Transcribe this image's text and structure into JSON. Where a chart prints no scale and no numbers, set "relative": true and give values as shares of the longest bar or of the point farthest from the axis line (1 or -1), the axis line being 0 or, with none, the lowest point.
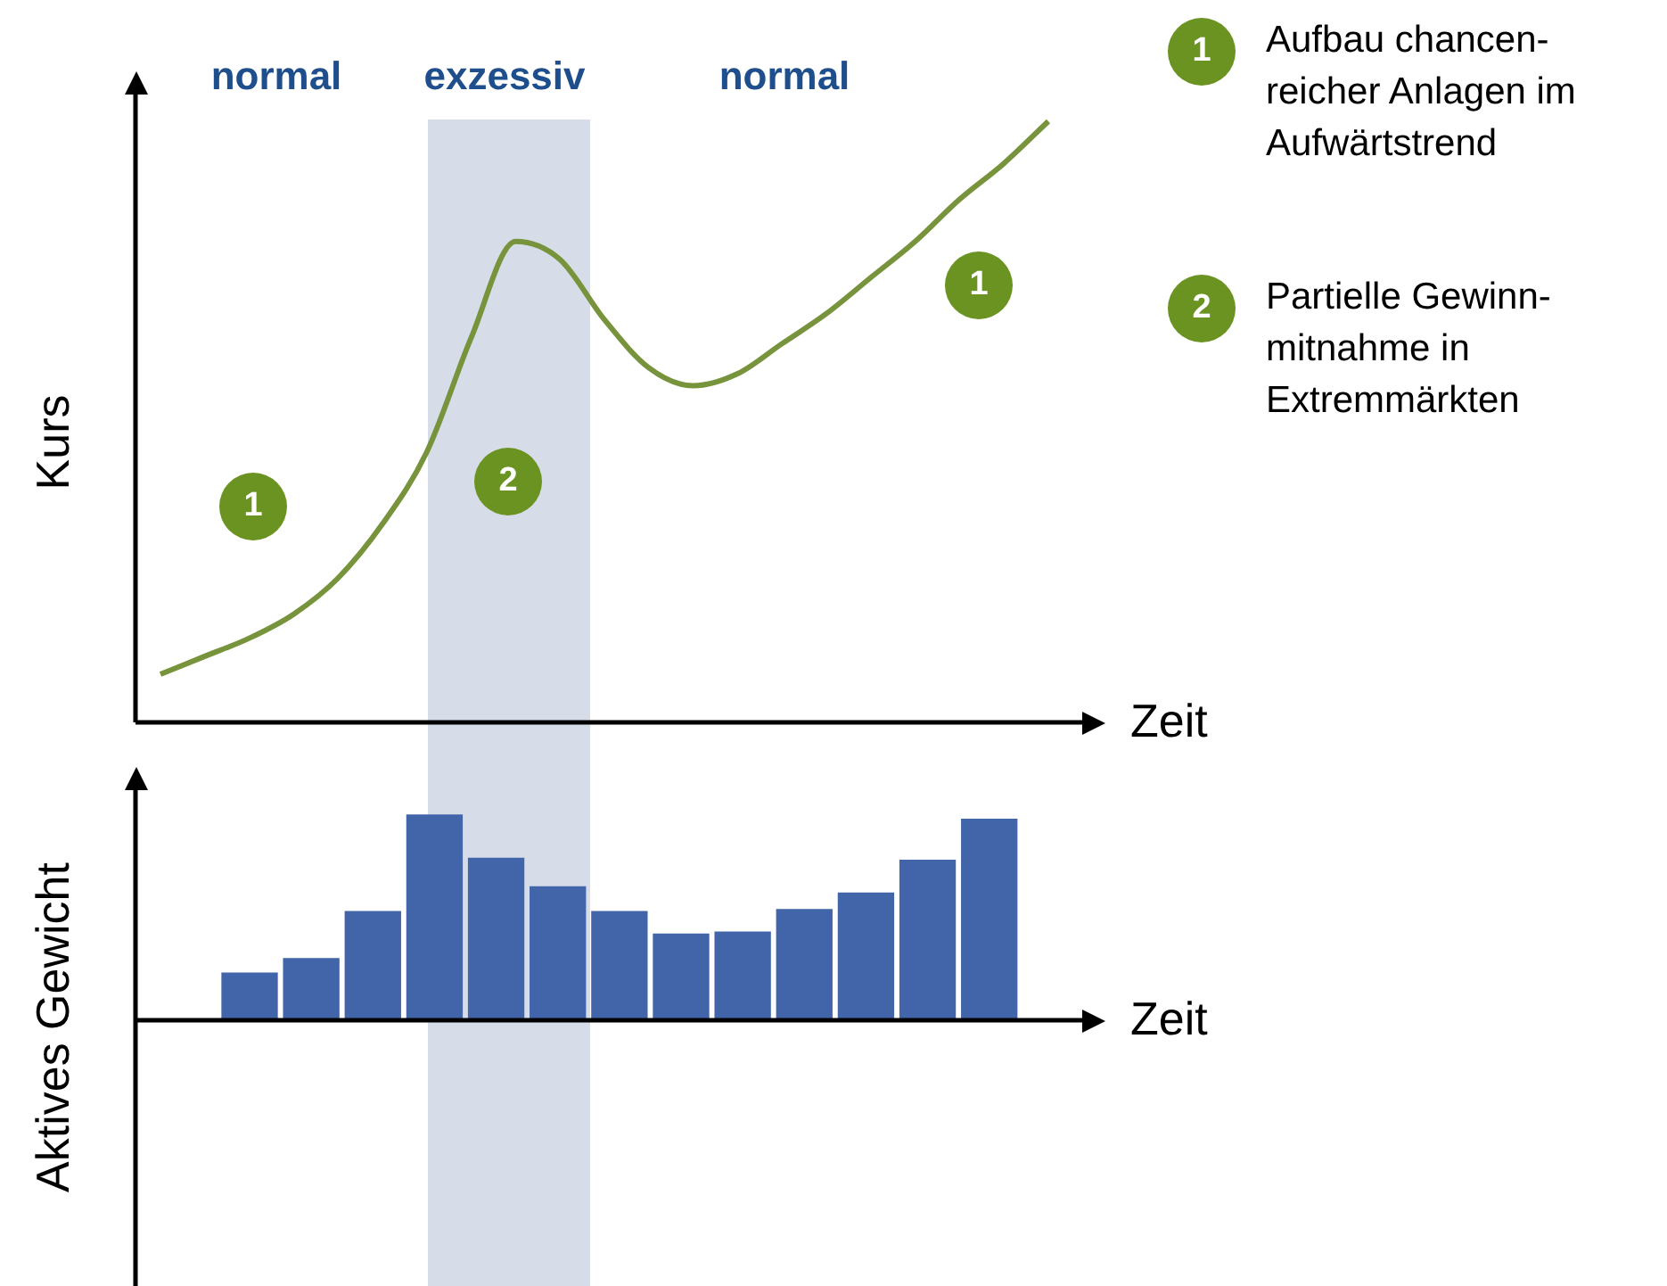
{
  "chart_data": [
    {
      "type": "line",
      "relative": true,
      "ylabel": "Kurs",
      "xlabel": "Zeit",
      "categories": [
        null,
        null,
        null,
        null,
        null,
        null,
        null,
        null,
        null,
        null,
        null,
        null,
        null,
        null,
        null,
        null,
        null,
        null,
        null,
        null,
        null
      ],
      "series": [
        {
          "color": "#77933c",
          "values": [
            0.08,
            0.11,
            0.14,
            0.18,
            0.24,
            0.33,
            0.45,
            0.64,
            0.8,
            0.77,
            0.67,
            0.59,
            0.56,
            0.58,
            0.63,
            0.68,
            0.74,
            0.8,
            0.87,
            0.93,
            1
          ]
        }
      ],
      "annotations": [
        "normal",
        "exzessiv",
        "normal",
        "1",
        "2",
        "1",
        "1",
        "Aufbau chancen-\nreicher Anlagen im\nAufwärtstrend",
        "2",
        "Partielle Gewinn-\nmitnahme in\nExtremmärkten"
      ]
    },
    {
      "type": "bar",
      "relative": true,
      "ylabel": "Aktives Gewicht",
      "xlabel": "Zeit",
      "categories": [
        null,
        null,
        null,
        null,
        null,
        null,
        null,
        null,
        null,
        null,
        null,
        null,
        null
      ],
      "series": [
        {
          "color": "#4264a8",
          "values": [
            0.23,
            0.3,
            0.53,
            1,
            0.79,
            0.65,
            0.53,
            0.42,
            0.43,
            0.54,
            0.62,
            0.78,
            0.98
          ]
        }
      ]
    }
  ]
}
